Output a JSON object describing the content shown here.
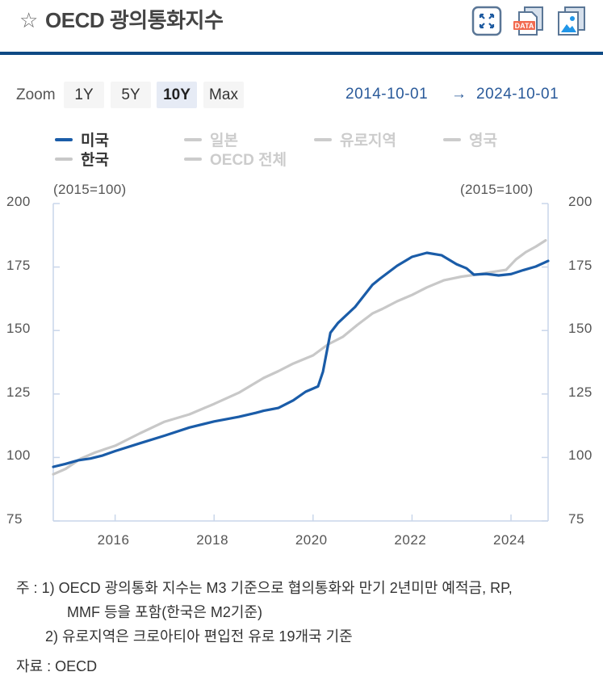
{
  "header": {
    "title": "OECD 광의통화지수",
    "icons": [
      "star-icon",
      "expand-icon",
      "data-download-icon",
      "image-download-icon"
    ],
    "data_badge": "DATA"
  },
  "zoom": {
    "label": "Zoom",
    "buttons": [
      {
        "label": "1Y",
        "active": false
      },
      {
        "label": "5Y",
        "active": false
      },
      {
        "label": "10Y",
        "active": true
      },
      {
        "label": "Max",
        "active": false
      }
    ],
    "from": "2014-10-01",
    "arrow": "→",
    "to": "2024-10-01"
  },
  "colors": {
    "us": "#1a5ca8",
    "korea": "#c8c8c8",
    "inactive": "#cccccc",
    "axis": "#c9d6ea",
    "header_rule": "#0e4a84"
  },
  "chart_data": {
    "type": "line",
    "title": "OECD 광의통화지수",
    "unit_left": "(2015=100)",
    "unit_right": "(2015=100)",
    "xlabel": "",
    "ylabel": "(2015=100)",
    "xlim": [
      2014.75,
      2024.75
    ],
    "ylim": [
      75,
      200
    ],
    "yticks": [
      "200",
      "175",
      "150",
      "125",
      "100",
      "75"
    ],
    "ytick_values": [
      200,
      175,
      150,
      125,
      100,
      75
    ],
    "xticks": [
      "2016",
      "2018",
      "2020",
      "2022",
      "2024"
    ],
    "xtick_values": [
      2016,
      2018,
      2020,
      2022,
      2024
    ],
    "grid": false,
    "legend_position": "top-left",
    "legend": [
      {
        "name": "미국",
        "active": true
      },
      {
        "name": "일본",
        "active": false
      },
      {
        "name": "유로지역",
        "active": false
      },
      {
        "name": "영국",
        "active": false
      },
      {
        "name": "한국",
        "active": true
      },
      {
        "name": "OECD 전체",
        "active": false
      }
    ],
    "series": [
      {
        "name": "미국",
        "x": [
          2014.75,
          2015.0,
          2015.25,
          2015.5,
          2015.75,
          2016.0,
          2016.5,
          2017.0,
          2017.5,
          2018.0,
          2018.5,
          2018.85,
          2019.0,
          2019.3,
          2019.6,
          2019.85,
          2020.1,
          2020.2,
          2020.35,
          2020.5,
          2020.85,
          2021.2,
          2021.35,
          2021.7,
          2022.0,
          2022.3,
          2022.6,
          2022.9,
          2023.1,
          2023.25,
          2023.5,
          2023.75,
          2024.0,
          2024.25,
          2024.5,
          2024.75
        ],
        "values": [
          96.3,
          97.5,
          98.9,
          99.6,
          100.8,
          102.5,
          105.6,
          108.6,
          111.8,
          114.2,
          116.0,
          117.6,
          118.4,
          119.5,
          122.5,
          125.9,
          128.0,
          133.8,
          149.1,
          152.9,
          159.3,
          168.0,
          170.4,
          175.5,
          179.0,
          180.6,
          179.6,
          176.1,
          174.5,
          172.0,
          172.3,
          171.7,
          172.2,
          173.8,
          175.2,
          177.4
        ]
      },
      {
        "name": "한국",
        "x": [
          2014.75,
          2015.0,
          2015.3,
          2015.6,
          2016.0,
          2016.5,
          2017.0,
          2017.5,
          2018.0,
          2018.5,
          2019.0,
          2019.3,
          2019.6,
          2020.0,
          2020.3,
          2020.6,
          2020.9,
          2021.2,
          2021.4,
          2021.7,
          2022.0,
          2022.3,
          2022.65,
          2023.0,
          2023.3,
          2023.6,
          2023.9,
          2024.1,
          2024.3,
          2024.5,
          2024.7
        ],
        "values": [
          93.4,
          95.5,
          99.5,
          102.0,
          104.6,
          109.5,
          114.1,
          117.0,
          121.1,
          125.5,
          131.3,
          134.0,
          137.0,
          140.2,
          144.5,
          147.5,
          152.3,
          156.7,
          158.5,
          161.5,
          164.0,
          167.0,
          169.8,
          171.2,
          172.0,
          173.0,
          173.9,
          178.0,
          180.9,
          183.0,
          185.5
        ]
      }
    ]
  },
  "notes": {
    "prefix": "주 : ",
    "items": [
      {
        "num": "1)",
        "lines": [
          "OECD 광의통화 지수는 M3 기준으로 협의통화와 만기 2년미만 예적금, RP,",
          "MMF 등을 포함(한국은 M2기준)"
        ]
      },
      {
        "num": "2)",
        "lines": [
          "유로지역은 크로아티아 편입전 유로 19개국 기준"
        ]
      }
    ],
    "source_label": "자료 : ",
    "source": "OECD"
  }
}
